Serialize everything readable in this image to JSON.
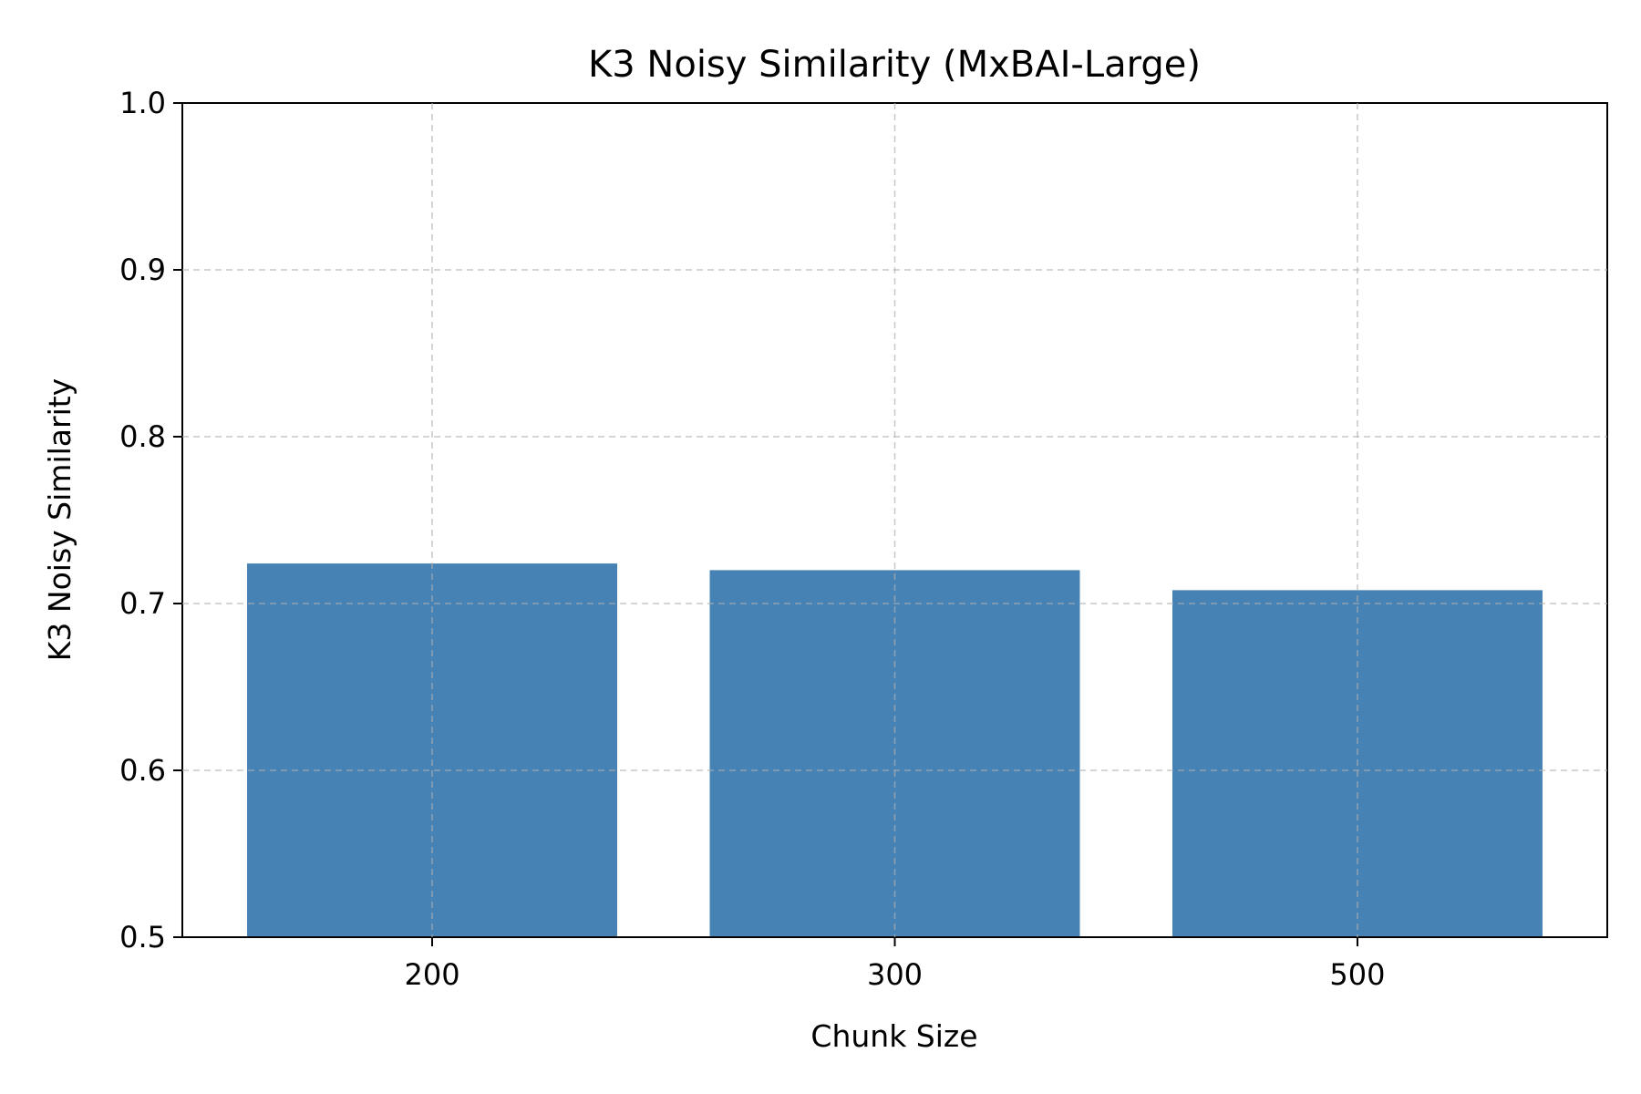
{
  "chart_data": {
    "type": "bar",
    "title": "K3 Noisy Similarity (MxBAI-Large)",
    "xlabel": "Chunk Size",
    "ylabel": "K3 Noisy Similarity",
    "categories": [
      "200",
      "300",
      "500"
    ],
    "values": [
      0.724,
      0.72,
      0.708
    ],
    "ylim": [
      0.5,
      1.0
    ],
    "yticks": [
      "0.5",
      "0.6",
      "0.7",
      "0.8",
      "0.9",
      "1.0"
    ],
    "grid": true,
    "bar_color": "#4682b4"
  }
}
